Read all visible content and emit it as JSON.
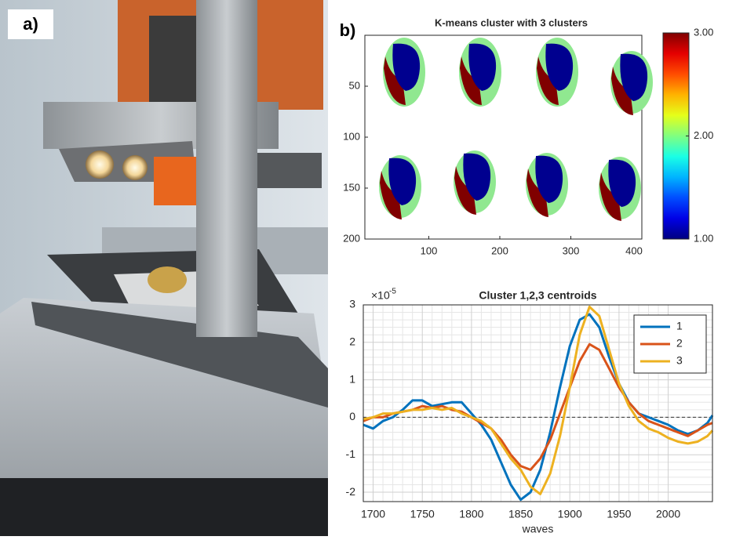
{
  "panel_labels": [
    "a)",
    "b)"
  ],
  "chart_data": [
    {
      "type": "cluster-map",
      "title": "K-means cluster with 3 clusters",
      "xlim": [
        10,
        400
      ],
      "xticks": [
        100,
        200,
        300,
        400
      ],
      "ylim": [
        0,
        200
      ],
      "yticks": [
        50,
        100,
        150,
        200
      ],
      "y_reversed": true,
      "cluster_colors": [
        "#00008f",
        "#90e890",
        "#800000"
      ],
      "colormap": "jet",
      "clim": [
        1,
        3
      ],
      "colorbar_ticks": [
        {
          "value": 1,
          "label": "1.00"
        },
        {
          "value": 2,
          "label": "2.00"
        },
        {
          "value": 3,
          "label": "3.00"
        }
      ]
    },
    {
      "type": "line",
      "title": "Cluster 1,2,3 centroids",
      "x_label": "waves",
      "y_multiplier_base": "×10",
      "y_multiplier_exponent": "-5",
      "x": [
        1690,
        1700,
        1710,
        1720,
        1730,
        1740,
        1750,
        1760,
        1770,
        1780,
        1790,
        1800,
        1810,
        1820,
        1830,
        1840,
        1850,
        1860,
        1870,
        1880,
        1890,
        1900,
        1910,
        1920,
        1930,
        1940,
        1950,
        1960,
        1970,
        1980,
        1990,
        2000,
        2010,
        2020,
        2030,
        2040,
        2045
      ],
      "series": [
        {
          "name": "1",
          "color": "#0072bd",
          "values": [
            -0.2,
            -0.3,
            -0.1,
            0.0,
            0.2,
            0.45,
            0.45,
            0.3,
            0.35,
            0.4,
            0.4,
            0.1,
            -0.2,
            -0.6,
            -1.2,
            -1.8,
            -2.2,
            -2.0,
            -1.4,
            -0.4,
            0.8,
            1.9,
            2.6,
            2.75,
            2.4,
            1.6,
            0.9,
            0.4,
            0.1,
            0.0,
            -0.1,
            -0.2,
            -0.35,
            -0.45,
            -0.35,
            -0.15,
            0.05
          ]
        },
        {
          "name": "2",
          "color": "#d95319",
          "values": [
            -0.1,
            0.0,
            0.0,
            0.1,
            0.15,
            0.2,
            0.3,
            0.25,
            0.3,
            0.2,
            0.15,
            0.0,
            -0.15,
            -0.3,
            -0.6,
            -1.0,
            -1.3,
            -1.4,
            -1.1,
            -0.6,
            0.1,
            0.8,
            1.5,
            1.95,
            1.8,
            1.3,
            0.8,
            0.4,
            0.1,
            -0.1,
            -0.2,
            -0.3,
            -0.4,
            -0.5,
            -0.35,
            -0.2,
            -0.15
          ]
        },
        {
          "name": "3",
          "color": "#edb120",
          "values": [
            -0.05,
            0.0,
            0.1,
            0.1,
            0.15,
            0.2,
            0.2,
            0.25,
            0.2,
            0.25,
            0.1,
            0.0,
            -0.1,
            -0.3,
            -0.7,
            -1.1,
            -1.4,
            -1.85,
            -2.05,
            -1.5,
            -0.5,
            0.8,
            2.2,
            2.95,
            2.7,
            1.8,
            0.9,
            0.3,
            -0.1,
            -0.3,
            -0.4,
            -0.55,
            -0.65,
            -0.7,
            -0.65,
            -0.5,
            -0.35
          ]
        }
      ],
      "xlim": [
        1690,
        2045
      ],
      "xticks": [
        1700,
        1750,
        1800,
        1850,
        1900,
        1950,
        2000
      ],
      "ylim": [
        -2.25,
        3
      ],
      "yticks": [
        -2,
        -1,
        0,
        1,
        2,
        3
      ],
      "grid": true,
      "minor_grid": true,
      "reference_line": 0,
      "legend": "upper-right"
    }
  ]
}
